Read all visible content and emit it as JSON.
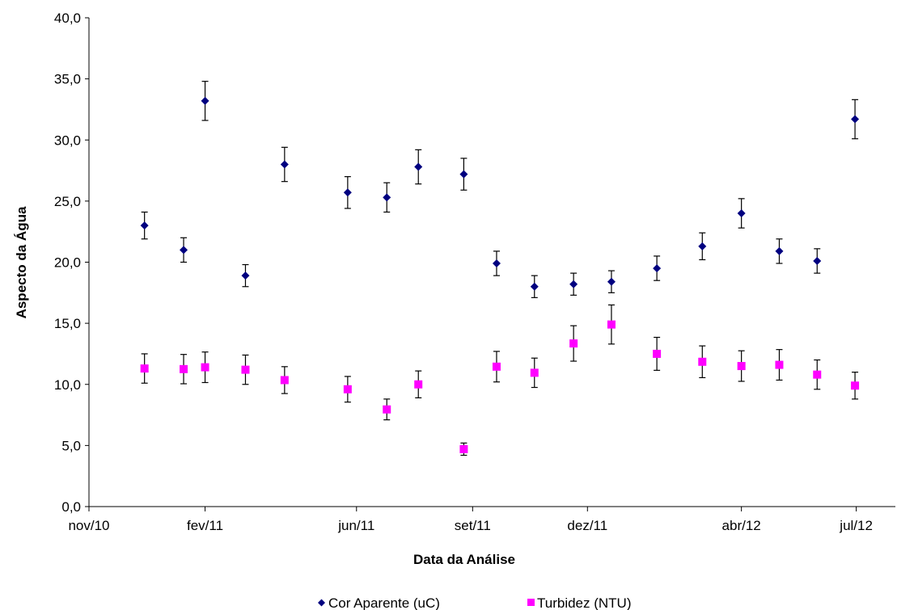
{
  "chart_data": {
    "type": "scatter",
    "title": "",
    "xlabel": "Data da Análise",
    "ylabel": "Aspecto da Água",
    "x_tick_labels": [
      "nov/10",
      "fev/11",
      "jun/11",
      "set/11",
      "dez/11",
      "abr/12",
      "jul/12"
    ],
    "x_tick_dates": [
      "2010-11-01",
      "2011-02-01",
      "2011-06-01",
      "2011-09-01",
      "2011-12-01",
      "2012-04-01",
      "2012-07-01"
    ],
    "xlim": [
      "2010-11-01",
      "2012-08-01"
    ],
    "ylim": [
      0,
      40
    ],
    "y_ticks": [
      "0,0",
      "5,0",
      "10,0",
      "15,0",
      "20,0",
      "25,0",
      "30,0",
      "35,0",
      "40,0"
    ],
    "y_tick_values": [
      0,
      5,
      10,
      15,
      20,
      25,
      30,
      35,
      40
    ],
    "grid": false,
    "legend_position": "bottom",
    "series": [
      {
        "name": "Cor Aparente (uC)",
        "marker": "diamond",
        "color": "#000080",
        "points": [
          {
            "x": "2010-12-15",
            "y": 23.0,
            "err": 1.1
          },
          {
            "x": "2011-01-15",
            "y": 21.0,
            "err": 1.0
          },
          {
            "x": "2011-02-01",
            "y": 33.2,
            "err": 1.6
          },
          {
            "x": "2011-03-05",
            "y": 18.9,
            "err": 0.9
          },
          {
            "x": "2011-04-05",
            "y": 28.0,
            "err": 1.4
          },
          {
            "x": "2011-05-25",
            "y": 25.7,
            "err": 1.3
          },
          {
            "x": "2011-06-25",
            "y": 25.3,
            "err": 1.2
          },
          {
            "x": "2011-07-20",
            "y": 27.8,
            "err": 1.4
          },
          {
            "x": "2011-08-25",
            "y": 27.2,
            "err": 1.3
          },
          {
            "x": "2011-09-20",
            "y": 19.9,
            "err": 1.0
          },
          {
            "x": "2011-10-20",
            "y": 18.0,
            "err": 0.9
          },
          {
            "x": "2011-11-20",
            "y": 18.2,
            "err": 0.9
          },
          {
            "x": "2011-12-20",
            "y": 18.4,
            "err": 0.9
          },
          {
            "x": "2012-01-25",
            "y": 19.5,
            "err": 1.0
          },
          {
            "x": "2012-03-01",
            "y": 21.3,
            "err": 1.1
          },
          {
            "x": "2012-04-01",
            "y": 24.0,
            "err": 1.2
          },
          {
            "x": "2012-05-01",
            "y": 20.9,
            "err": 1.0
          },
          {
            "x": "2012-05-31",
            "y": 20.1,
            "err": 1.0
          },
          {
            "x": "2012-06-30",
            "y": 31.7,
            "err": 1.6
          }
        ]
      },
      {
        "name": "Turbidez (NTU)",
        "marker": "square",
        "color": "#ff00ff",
        "points": [
          {
            "x": "2010-12-15",
            "y": 11.3,
            "err": 1.2
          },
          {
            "x": "2011-01-15",
            "y": 11.25,
            "err": 1.2
          },
          {
            "x": "2011-02-01",
            "y": 11.4,
            "err": 1.25
          },
          {
            "x": "2011-03-05",
            "y": 11.2,
            "err": 1.2
          },
          {
            "x": "2011-04-05",
            "y": 10.35,
            "err": 1.1
          },
          {
            "x": "2011-05-25",
            "y": 9.6,
            "err": 1.05
          },
          {
            "x": "2011-06-25",
            "y": 7.95,
            "err": 0.85
          },
          {
            "x": "2011-07-20",
            "y": 10.0,
            "err": 1.1
          },
          {
            "x": "2011-08-25",
            "y": 4.7,
            "err": 0.5
          },
          {
            "x": "2011-09-20",
            "y": 11.45,
            "err": 1.25
          },
          {
            "x": "2011-10-20",
            "y": 10.95,
            "err": 1.2
          },
          {
            "x": "2011-11-20",
            "y": 13.35,
            "err": 1.45
          },
          {
            "x": "2011-12-20",
            "y": 14.9,
            "err": 1.6
          },
          {
            "x": "2012-01-25",
            "y": 12.5,
            "err": 1.35
          },
          {
            "x": "2012-03-01",
            "y": 11.85,
            "err": 1.3
          },
          {
            "x": "2012-04-01",
            "y": 11.5,
            "err": 1.25
          },
          {
            "x": "2012-05-01",
            "y": 11.6,
            "err": 1.25
          },
          {
            "x": "2012-05-31",
            "y": 10.8,
            "err": 1.2
          },
          {
            "x": "2012-06-30",
            "y": 9.9,
            "err": 1.1
          }
        ]
      }
    ]
  }
}
